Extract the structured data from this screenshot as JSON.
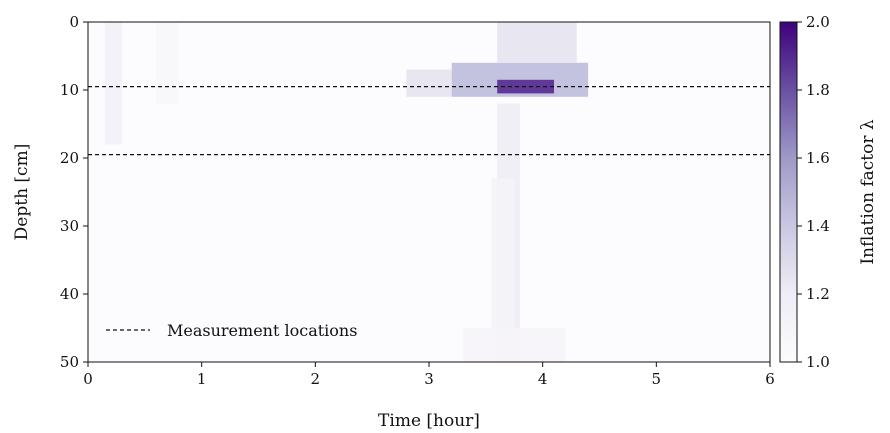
{
  "chart_data": {
    "type": "heatmap",
    "title": "",
    "xlabel": "Time [hour]",
    "ylabel": "Depth [cm]",
    "xlim": [
      0,
      6
    ],
    "ylim": [
      50,
      0
    ],
    "x_ticks": [
      "0",
      "1",
      "2",
      "3",
      "4",
      "5",
      "6"
    ],
    "y_ticks": [
      "0",
      "10",
      "20",
      "30",
      "40",
      "50"
    ],
    "colorbar": {
      "label": "Inflation factor λ",
      "range": [
        1.0,
        2.0
      ],
      "ticks": [
        "1.0",
        "1.2",
        "1.4",
        "1.6",
        "1.8",
        "2.0"
      ],
      "colormap": "Purples",
      "color_low": "#fcfbfd",
      "color_high": "#3f007d"
    },
    "measurement_depths": [
      9.5,
      19.5
    ],
    "legend": {
      "label": "Measurement locations",
      "placement": "lower-left",
      "line_style": "dashed"
    },
    "features": [
      {
        "t": [
          0.15,
          0.3
        ],
        "d": [
          0,
          18
        ],
        "lambda": 1.15
      },
      {
        "t": [
          0.6,
          0.8
        ],
        "d": [
          0,
          12
        ],
        "lambda": 1.07
      },
      {
        "t": [
          2.8,
          3.2
        ],
        "d": [
          7,
          11
        ],
        "lambda": 1.25
      },
      {
        "t": [
          3.2,
          4.4
        ],
        "d": [
          6,
          11
        ],
        "lambda": 1.45
      },
      {
        "t": [
          3.6,
          4.1
        ],
        "d": [
          8.5,
          10.5
        ],
        "lambda": 1.9
      },
      {
        "t": [
          3.6,
          4.3
        ],
        "d": [
          0,
          6
        ],
        "lambda": 1.25
      },
      {
        "t": [
          3.6,
          3.8
        ],
        "d": [
          12,
          50
        ],
        "lambda": 1.2
      },
      {
        "t": [
          3.3,
          4.2
        ],
        "d": [
          45,
          50
        ],
        "lambda": 1.1
      },
      {
        "t": [
          3.55,
          3.75
        ],
        "d": [
          23,
          45
        ],
        "lambda": 1.12
      }
    ]
  }
}
